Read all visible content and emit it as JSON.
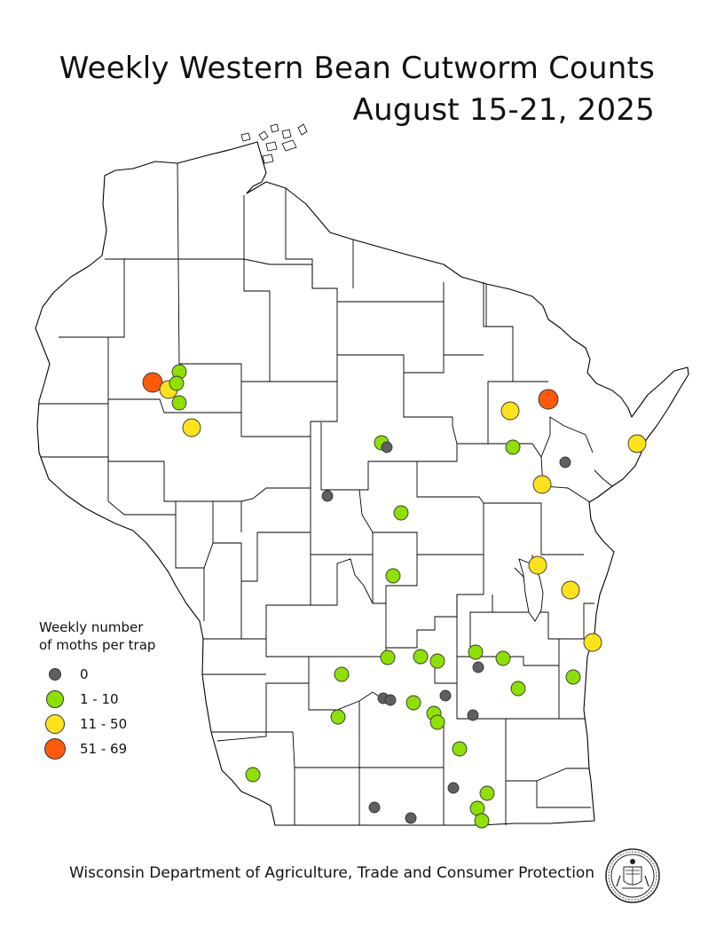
{
  "title": {
    "line1": "Weekly Western Bean Cutworm Counts",
    "line2": "August 15-21, 2025"
  },
  "legend": {
    "title_line1": "Weekly number",
    "title_line2": "of moths per trap",
    "items": [
      {
        "label": "0",
        "color": "#5f5f5f",
        "class": "zero"
      },
      {
        "label": "1 - 10",
        "color": "#8ee000",
        "class": "low"
      },
      {
        "label": "11 - 50",
        "color": "#ffe31a",
        "class": "mid"
      },
      {
        "label": "51 - 69",
        "color": "#ff5a0a",
        "class": "high"
      }
    ]
  },
  "footer": "Wisconsin Department of Agriculture, Trade and Consumer Protection",
  "seal_icon": "wisconsin-state-seal-icon",
  "colors": {
    "zero": "#5f5f5f",
    "low": "#8ee000",
    "mid": "#ffe31a",
    "high": "#ff5a0a",
    "border": "#000000"
  },
  "traps": [
    {
      "count_class": "high"
    },
    {
      "count_class": "mid"
    },
    {
      "count_class": "low"
    },
    {
      "count_class": "low"
    },
    {
      "count_class": "low"
    },
    {
      "count_class": "mid"
    },
    {
      "count_class": "low"
    },
    {
      "count_class": "zero"
    },
    {
      "count_class": "zero"
    },
    {
      "count_class": "low"
    },
    {
      "count_class": "mid"
    },
    {
      "count_class": "high"
    },
    {
      "count_class": "low"
    },
    {
      "count_class": "zero"
    },
    {
      "count_class": "mid"
    },
    {
      "count_class": "mid"
    },
    {
      "count_class": "mid"
    },
    {
      "count_class": "mid"
    },
    {
      "count_class": "mid"
    },
    {
      "count_class": "low"
    },
    {
      "count_class": "low"
    },
    {
      "count_class": "low"
    },
    {
      "count_class": "low"
    },
    {
      "count_class": "low"
    },
    {
      "count_class": "low"
    },
    {
      "count_class": "zero"
    },
    {
      "count_class": "low"
    },
    {
      "count_class": "low"
    },
    {
      "count_class": "zero"
    },
    {
      "count_class": "zero"
    },
    {
      "count_class": "low"
    },
    {
      "count_class": "zero"
    },
    {
      "count_class": "low"
    },
    {
      "count_class": "low"
    },
    {
      "count_class": "zero"
    },
    {
      "count_class": "low"
    },
    {
      "count_class": "low"
    },
    {
      "count_class": "low"
    },
    {
      "count_class": "low"
    },
    {
      "count_class": "zero"
    },
    {
      "count_class": "zero"
    },
    {
      "count_class": "zero"
    },
    {
      "count_class": "low"
    },
    {
      "count_class": "low"
    },
    {
      "count_class": "low"
    }
  ]
}
